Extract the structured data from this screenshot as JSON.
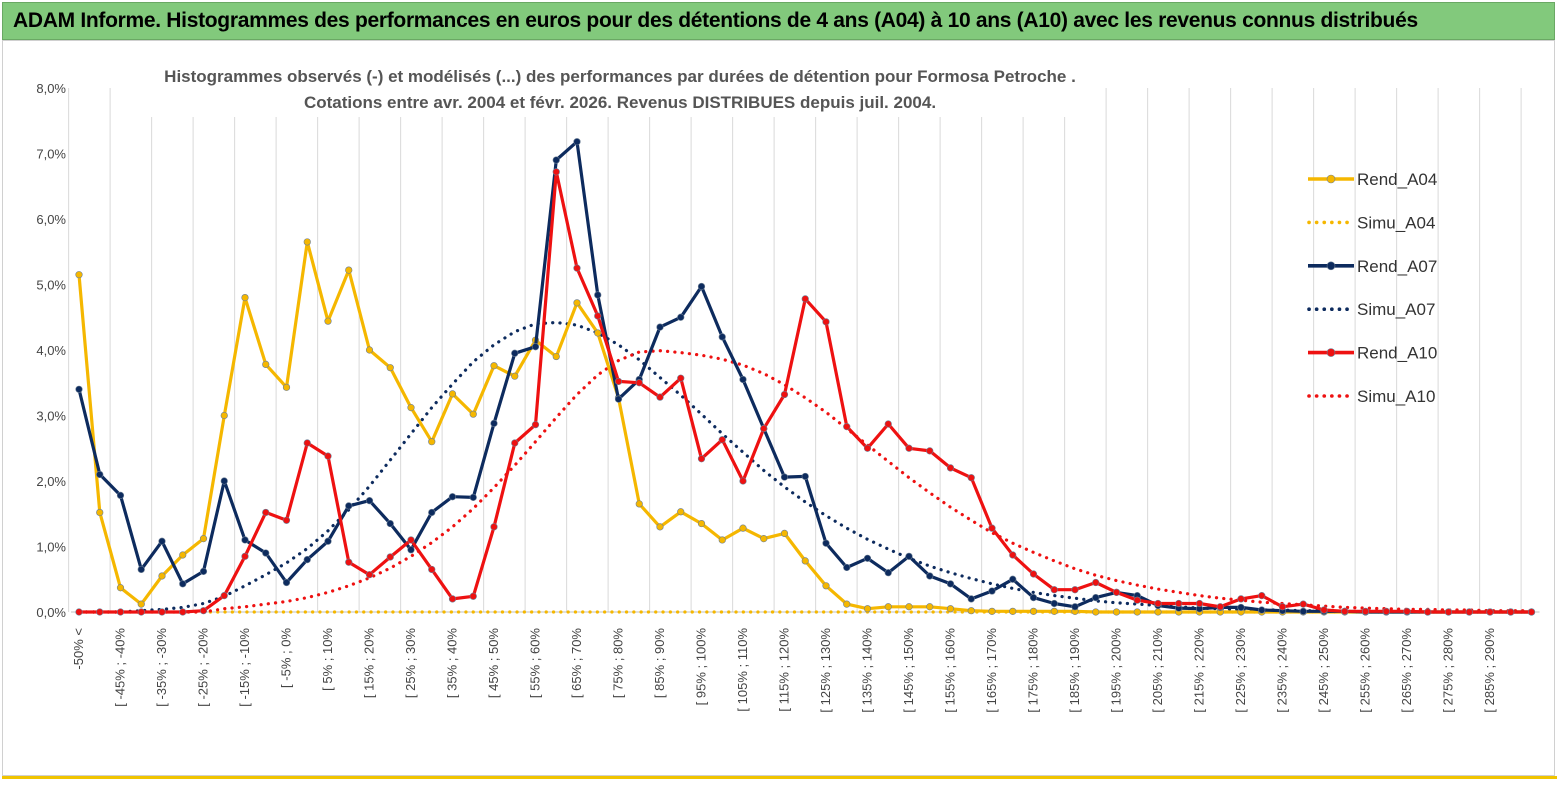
{
  "banner": {
    "title": "ADAM Informe. Histogrammes des performances en euros pour des détentions de 4 ans (A04) à 10 ans (A10) avec les revenus connus distribués"
  },
  "colors": {
    "banner_bg": "#82c97c",
    "a04": "#f5b700",
    "a07": "#0d2b5e",
    "a10": "#ee1111",
    "grid": "#d9d9d9"
  },
  "chart_data": {
    "type": "line",
    "title_line1": "Histogrammes observés (-) et modélisés (...) des performances par durées de détention pour Formosa Petroche .",
    "title_line2": "Cotations entre avr. 2004 et févr. 2026. Revenus DISTRIBUES depuis juil. 2004.",
    "ylim": [
      0,
      8
    ],
    "y_ticks": [
      "0,0%",
      "1,0%",
      "2,0%",
      "3,0%",
      "4,0%",
      "5,0%",
      "6,0%",
      "7,0%",
      "8,0%"
    ],
    "grid": "vertical",
    "legend_position": "right",
    "x_labels": [
      "-50% <",
      "[ -45% ; -40%",
      "[ -35% ; -30%",
      "[ -25% ; -20%",
      "[ -15% ; -10%",
      "[ -5% ; 0%",
      "[ 5% ; 10%",
      "[ 15% ; 20%",
      "[ 25% ; 30%",
      "[ 35% ; 40%",
      "[ 45% ; 50%",
      "[ 55% ; 60%",
      "[ 65% ; 70%",
      "[ 75% ; 80%",
      "[ 85% ; 90%",
      "[ 95% ; 100%",
      "[ 105% ; 110%",
      "[ 115% ; 120%",
      "[ 125% ; 130%",
      "[ 135% ; 140%",
      "[ 145% ; 150%",
      "[ 155% ; 160%",
      "[ 165% ; 170%",
      "[ 175% ; 180%",
      "[ 185% ; 190%",
      "[ 195% ; 200%",
      "[ 205% ; 210%",
      "[ 215% ; 220%",
      "[ 225% ; 230%",
      "[ 235% ; 240%",
      "[ 245% ; 250%",
      "[ 255% ; 260%",
      "[ 265% ; 270%",
      "[ 275% ; 280%",
      "[ 285% ; 290%"
    ],
    "n_categories": 71,
    "series": [
      {
        "name": "Rend_A04",
        "color": "#f5b700",
        "style": "solid",
        "values": [
          5.15,
          1.52,
          0.37,
          0.12,
          0.55,
          0.87,
          1.12,
          3.0,
          4.8,
          3.78,
          3.43,
          5.65,
          4.44,
          5.22,
          4.0,
          3.73,
          3.12,
          2.6,
          3.33,
          3.02,
          3.76,
          3.6,
          4.15,
          3.9,
          4.72,
          4.26,
          3.27,
          1.65,
          1.3,
          1.53,
          1.35,
          1.1,
          1.28,
          1.12,
          1.2,
          0.78,
          0.4,
          0.12,
          0.05,
          0.08,
          0.08,
          0.08,
          0.05,
          0.02,
          0.01,
          0.01,
          0.01,
          0.01,
          0.01,
          0.0,
          0.0,
          0.0,
          0.0,
          0.0,
          0.0,
          0.0,
          0.0,
          0.0,
          0.0,
          0.0,
          0.0,
          0.0,
          0.0,
          0.0,
          0.0,
          0.0,
          0.0,
          0.0,
          0.0,
          0.0,
          0.0
        ]
      },
      {
        "name": "Simu_A04",
        "color": "#f5b700",
        "style": "dotted",
        "values": [
          0.0,
          0.0,
          0.0,
          0.0,
          0.0,
          0.0,
          0.0,
          0.0,
          0.0,
          0.0,
          0.0,
          0.0,
          0.0,
          0.0,
          0.0,
          0.0,
          0.0,
          0.0,
          0.0,
          0.0,
          0.0,
          0.0,
          0.0,
          0.0,
          0.0,
          0.0,
          0.0,
          0.0,
          0.0,
          0.0,
          0.0,
          0.0,
          0.0,
          0.0,
          0.0,
          0.0,
          0.0,
          0.0,
          0.0,
          0.0,
          0.0,
          0.0,
          0.0,
          0.0,
          0.0,
          0.0,
          0.0,
          0.0,
          0.0,
          0.0,
          0.0,
          0.0,
          0.0,
          0.0,
          0.0,
          0.0,
          0.0,
          0.0,
          0.0,
          0.0,
          0.0,
          0.0,
          0.0,
          0.0,
          0.0,
          0.0,
          0.0,
          0.0,
          0.0,
          0.0,
          0.0
        ]
      },
      {
        "name": "Rend_A07",
        "color": "#0d2b5e",
        "style": "solid",
        "values": [
          3.4,
          2.1,
          1.78,
          0.65,
          1.08,
          0.43,
          0.62,
          2.0,
          1.1,
          0.9,
          0.45,
          0.8,
          1.08,
          1.62,
          1.7,
          1.35,
          0.95,
          1.52,
          1.76,
          1.75,
          2.88,
          3.95,
          4.05,
          6.9,
          7.18,
          4.84,
          3.25,
          3.55,
          4.35,
          4.5,
          4.97,
          4.2,
          3.55,
          2.8,
          2.06,
          2.07,
          1.05,
          0.68,
          0.82,
          0.6,
          0.85,
          0.55,
          0.43,
          0.2,
          0.32,
          0.5,
          0.22,
          0.13,
          0.08,
          0.22,
          0.3,
          0.25,
          0.1,
          0.06,
          0.05,
          0.07,
          0.07,
          0.03,
          0.02,
          0.01,
          0.01,
          0.01,
          0.0,
          0.0,
          0.0,
          0.0,
          0.0,
          0.0,
          0.0,
          0.0,
          0.0
        ]
      },
      {
        "name": "Simu_A07",
        "color": "#0d2b5e",
        "style": "dotted",
        "values": [
          0.0,
          0.0,
          0.0,
          0.02,
          0.04,
          0.07,
          0.13,
          0.24,
          0.4,
          0.57,
          0.75,
          0.97,
          1.24,
          1.56,
          1.92,
          2.32,
          2.72,
          3.12,
          3.48,
          3.82,
          4.08,
          4.28,
          4.4,
          4.42,
          4.38,
          4.26,
          4.08,
          3.85,
          3.58,
          3.31,
          3.02,
          2.72,
          2.44,
          2.16,
          1.91,
          1.68,
          1.47,
          1.28,
          1.11,
          0.96,
          0.82,
          0.7,
          0.6,
          0.51,
          0.43,
          0.36,
          0.3,
          0.25,
          0.21,
          0.17,
          0.14,
          0.12,
          0.1,
          0.08,
          0.06,
          0.05,
          0.04,
          0.03,
          0.03,
          0.02,
          0.02,
          0.01,
          0.01,
          0.01,
          0.0,
          0.0,
          0.0,
          0.0,
          0.0,
          0.0,
          0.0
        ]
      },
      {
        "name": "Rend_A10",
        "color": "#ee1111",
        "style": "solid",
        "values": [
          0.0,
          0.0,
          0.0,
          0.0,
          0.0,
          0.0,
          0.02,
          0.25,
          0.85,
          1.52,
          1.4,
          2.58,
          2.38,
          0.76,
          0.57,
          0.84,
          1.1,
          0.65,
          0.2,
          0.24,
          1.3,
          2.58,
          2.86,
          6.72,
          5.25,
          4.52,
          3.52,
          3.5,
          3.28,
          3.57,
          2.34,
          2.63,
          2.0,
          2.8,
          3.32,
          4.78,
          4.43,
          2.83,
          2.5,
          2.87,
          2.5,
          2.46,
          2.2,
          2.05,
          1.28,
          0.87,
          0.58,
          0.34,
          0.34,
          0.45,
          0.3,
          0.18,
          0.13,
          0.13,
          0.13,
          0.08,
          0.2,
          0.25,
          0.08,
          0.12,
          0.03,
          0.01,
          0.01,
          0.01,
          0.01,
          0.0,
          0.0,
          0.0,
          0.0,
          0.0,
          0.0
        ]
      },
      {
        "name": "Simu_A10",
        "color": "#ee1111",
        "style": "dotted",
        "values": [
          0.0,
          0.0,
          0.0,
          0.0,
          0.0,
          0.0,
          0.0,
          0.05,
          0.08,
          0.12,
          0.16,
          0.22,
          0.3,
          0.4,
          0.52,
          0.67,
          0.85,
          1.06,
          1.3,
          1.58,
          1.9,
          2.24,
          2.6,
          2.97,
          3.32,
          3.62,
          3.84,
          3.97,
          3.99,
          3.96,
          3.92,
          3.86,
          3.77,
          3.64,
          3.47,
          3.27,
          3.05,
          2.8,
          2.55,
          2.3,
          2.05,
          1.82,
          1.6,
          1.4,
          1.21,
          1.05,
          0.91,
          0.78,
          0.66,
          0.56,
          0.48,
          0.41,
          0.35,
          0.3,
          0.25,
          0.21,
          0.18,
          0.15,
          0.13,
          0.11,
          0.09,
          0.07,
          0.06,
          0.05,
          0.04,
          0.04,
          0.03,
          0.03,
          0.02,
          0.02,
          0.02
        ]
      }
    ]
  }
}
